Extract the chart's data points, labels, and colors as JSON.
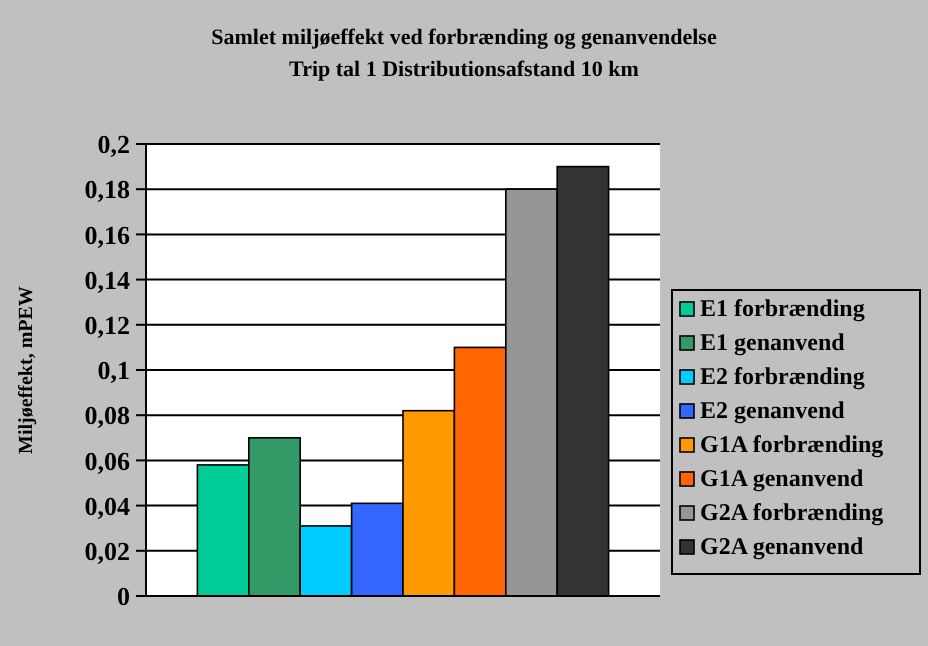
{
  "chart_data": {
    "type": "bar",
    "title": "Samlet miljøeffekt ved forbrænding og genanvendelse",
    "subtitle": "Trip tal 1 Distributionsafstand 10 km",
    "ylabel": "Miljøeffekt, mPEW",
    "categories": [
      null
    ],
    "series": [
      {
        "name": "E1 forbrænding",
        "color": "#00cc99",
        "values": [
          0.058
        ]
      },
      {
        "name": "E1 genanvend",
        "color": "#339966",
        "values": [
          0.07
        ]
      },
      {
        "name": "E2 forbrænding",
        "color": "#00ccff",
        "values": [
          0.031
        ]
      },
      {
        "name": "E2 genanvend",
        "color": "#3366ff",
        "values": [
          0.041
        ]
      },
      {
        "name": "G1A forbrænding",
        "color": "#ff9900",
        "values": [
          0.082
        ]
      },
      {
        "name": "G1A genanvend",
        "color": "#ff6600",
        "values": [
          0.11
        ]
      },
      {
        "name": "G2A forbrænding",
        "color": "#969696",
        "values": [
          0.18
        ]
      },
      {
        "name": "G2A genanvend",
        "color": "#333333",
        "values": [
          0.19
        ]
      }
    ],
    "ylim": [
      0,
      0.2
    ],
    "yticks": [
      0,
      {
        "value": 0.02,
        "label": "0,02"
      },
      {
        "value": 0.04,
        "label": "0,04"
      },
      {
        "value": 0.06,
        "label": "0,06"
      },
      {
        "value": 0.08,
        "label": "0,08"
      },
      {
        "value": 0.1,
        "label": "0,1"
      },
      {
        "value": 0.12,
        "label": "0,12"
      },
      {
        "value": 0.14,
        "label": "0,14"
      },
      {
        "value": 0.16,
        "label": "0,16"
      },
      {
        "value": 0.18,
        "label": "0,18"
      },
      {
        "value": 0.2,
        "label": "0,2"
      }
    ],
    "grid": "y",
    "legend": "right"
  }
}
